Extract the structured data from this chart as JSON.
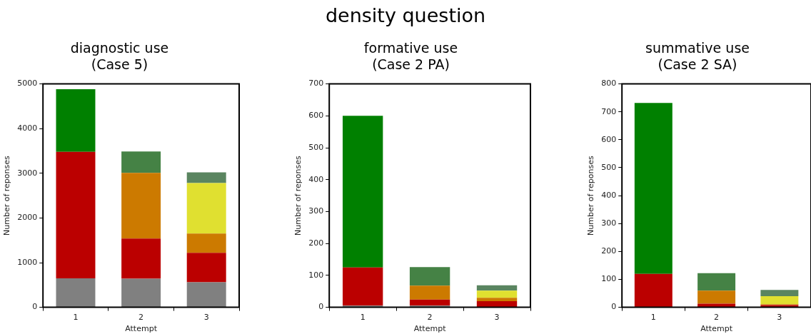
{
  "chart_data": [
    {
      "type": "other",
      "title": "density question"
    },
    {
      "type": "bar",
      "title": "diagnostic use\n(Case 5)",
      "xlabel": "Attempt",
      "ylabel": "Number of reponses",
      "categories": [
        "1",
        "2",
        "3"
      ],
      "stacked": true,
      "grid": false,
      "legend": false,
      "ylim": [
        0,
        5000
      ],
      "yticks": [
        0,
        1000,
        2000,
        3000,
        4000,
        5000
      ],
      "series": [
        {
          "color": "#808080",
          "values": [
            650,
            640,
            560
          ]
        },
        {
          "color": "#bb0000",
          "values": [
            2830,
            900,
            660
          ]
        },
        {
          "color": "#cc7a00",
          "values": [
            null,
            1470,
            430
          ]
        },
        {
          "color": "#e0e030",
          "values": [
            null,
            null,
            1130
          ]
        },
        {
          "colors": [
            "#008000",
            "#458245",
            "#5a8560"
          ],
          "values": [
            1400,
            480,
            240
          ]
        }
      ]
    },
    {
      "type": "bar",
      "title": "formative use\n(Case 2 PA)",
      "xlabel": "Attempt",
      "ylabel": "Number of reponses",
      "categories": [
        "1",
        "2",
        "3"
      ],
      "stacked": true,
      "grid": false,
      "legend": false,
      "ylim": [
        0,
        700
      ],
      "yticks": [
        0,
        100,
        200,
        300,
        400,
        500,
        600,
        700
      ],
      "series": [
        {
          "color": "#808080",
          "values": [
            5,
            5,
            null
          ]
        },
        {
          "color": "#bb0000",
          "values": [
            120,
            19,
            19
          ]
        },
        {
          "color": "#cc7a00",
          "values": [
            null,
            44,
            11
          ]
        },
        {
          "color": "#e0e030",
          "values": [
            null,
            null,
            22
          ]
        },
        {
          "colors": [
            "#008000",
            "#458245",
            "#5a8560"
          ],
          "values": [
            475,
            58,
            17
          ]
        }
      ]
    },
    {
      "type": "bar",
      "title": "summative use\n(Case 2 SA)",
      "xlabel": "Attempt",
      "ylabel": "Number of reponses",
      "categories": [
        "1",
        "2",
        "3"
      ],
      "stacked": true,
      "grid": false,
      "legend": false,
      "ylim": [
        0,
        800
      ],
      "yticks": [
        0,
        100,
        200,
        300,
        400,
        500,
        600,
        700,
        800
      ],
      "series": [
        {
          "color": "#808080",
          "values": [
            null,
            null,
            null
          ]
        },
        {
          "color": "#bb0000",
          "values": [
            120,
            13,
            8
          ]
        },
        {
          "color": "#cc7a00",
          "values": [
            null,
            47,
            3
          ]
        },
        {
          "color": "#e0e030",
          "values": [
            null,
            null,
            29
          ]
        },
        {
          "colors": [
            "#008000",
            "#458245",
            "#5a8560"
          ],
          "values": [
            612,
            62,
            22
          ]
        }
      ]
    }
  ]
}
